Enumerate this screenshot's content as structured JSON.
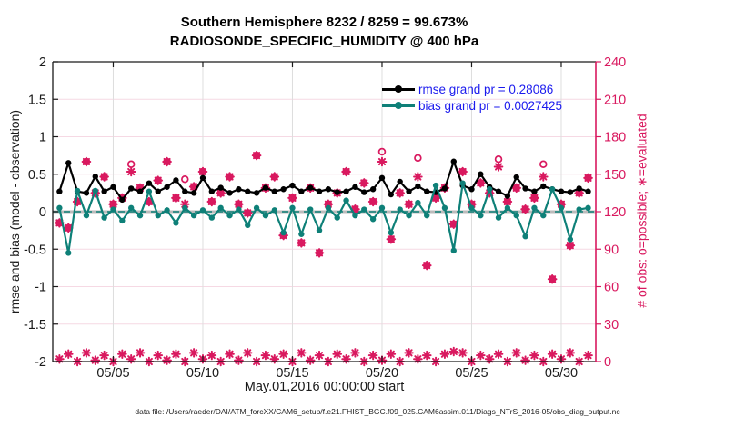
{
  "figure": {
    "title_line1": "Southern Hemisphere 8232 / 8259 = 99.673%",
    "title_line2": "RADIOSONDE_SPECIFIC_HUMIDITY @ 400 hPa",
    "footer": "data file: /Users/raeder/DAI/ATM_forcXX/CAM6_setup/f.e21.FHIST_BGC.f09_025.CAM6assim.011/Diags_NTrS_2016-05/obs_diag_output.nc"
  },
  "legend": [
    {
      "label": "rmse grand pr = 0.28086",
      "color": "#000000"
    },
    {
      "label": "bias grand pr = 0.0027425",
      "color": "#0E8078"
    }
  ],
  "colors": {
    "rmse": "#000000",
    "bias": "#0E8078",
    "obs_counts": "#D9195F",
    "legend_text": "#1A1AEE",
    "axis_dark": "#1A1A1A",
    "grid_horizontal": "#F6D9E4",
    "grid_vertical": "#DEDEDE",
    "zero_line": "#BBBBBB"
  },
  "chart_data": {
    "type": "line",
    "title": "Southern Hemisphere 8232 / 8259 = 99.673% — RADIOSONDE_SPECIFIC_HUMIDITY @ 400 hPa",
    "xlabel": "May.01,2016 00:00:00 start",
    "ylabel_left": "rmse and bias (model - observation)",
    "ylabel_right": "# of obs: o=possible; ∗=evaluated",
    "ylim_left": [
      -2,
      2
    ],
    "yticks_left": {
      "values": [
        2,
        1.5,
        1,
        0.5,
        0,
        -0.5,
        -1,
        -1.5,
        -2
      ],
      "labels": [
        "2",
        "1.5",
        "1",
        "0.5",
        "0",
        "-0.5",
        "-1",
        "-1.5",
        "-2"
      ]
    },
    "ylim_right": [
      0,
      240
    ],
    "yticks_right": {
      "values": [
        240,
        210,
        180,
        150,
        120,
        90,
        60,
        30,
        0
      ],
      "labels": [
        "240",
        "210",
        "180",
        "150",
        "120",
        "90",
        "60",
        "30",
        "0"
      ]
    },
    "xlim_days": [
      1.625,
      31.93
    ],
    "xticks": {
      "values": [
        5,
        10,
        15,
        20,
        25,
        30
      ],
      "labels": [
        "05/05",
        "05/10",
        "05/15",
        "05/20",
        "05/25",
        "05/30"
      ]
    },
    "grid": true,
    "legend_position": "top-right-inside",
    "x_days": [
      2.0,
      2.5,
      3.0,
      3.5,
      4.0,
      4.5,
      5.0,
      5.5,
      6.0,
      6.5,
      7.0,
      7.5,
      8.0,
      8.5,
      9.0,
      9.5,
      10.0,
      10.5,
      11.0,
      11.5,
      12.0,
      12.5,
      13.0,
      13.5,
      14.0,
      14.5,
      15.0,
      15.5,
      16.0,
      16.5,
      17.0,
      17.5,
      18.0,
      18.5,
      19.0,
      19.5,
      20.0,
      20.5,
      21.0,
      21.5,
      22.0,
      22.5,
      23.0,
      23.5,
      24.0,
      24.5,
      25.0,
      25.5,
      26.0,
      26.5,
      27.0,
      27.5,
      28.0,
      28.5,
      29.0,
      29.5,
      30.0,
      30.5,
      31.0,
      31.5
    ],
    "series": [
      {
        "name": "rmse",
        "axis": "left",
        "color": "#000000",
        "values": [
          0.27,
          0.65,
          0.27,
          0.25,
          0.47,
          0.27,
          0.33,
          0.16,
          0.31,
          0.27,
          0.38,
          0.27,
          0.33,
          0.42,
          0.27,
          0.25,
          0.45,
          0.27,
          0.32,
          0.25,
          0.3,
          0.27,
          0.25,
          0.32,
          0.27,
          0.3,
          0.35,
          0.27,
          0.32,
          0.27,
          0.3,
          0.26,
          0.27,
          0.33,
          0.26,
          0.3,
          0.45,
          0.23,
          0.4,
          0.27,
          0.34,
          0.27,
          0.26,
          0.31,
          0.67,
          0.35,
          0.3,
          0.5,
          0.33,
          0.27,
          0.21,
          0.46,
          0.31,
          0.27,
          0.34,
          0.3,
          0.27,
          0.26,
          0.31,
          0.27
        ]
      },
      {
        "name": "bias",
        "axis": "left",
        "color": "#0E8078",
        "values": [
          0.05,
          -0.55,
          0.28,
          -0.05,
          0.28,
          -0.08,
          0.03,
          -0.12,
          0.05,
          -0.05,
          0.27,
          -0.05,
          0.02,
          -0.15,
          0.05,
          -0.05,
          0.02,
          -0.08,
          0.05,
          -0.05,
          0.03,
          -0.18,
          0.05,
          -0.05,
          0.02,
          -0.28,
          0.05,
          -0.3,
          0.03,
          -0.25,
          0.05,
          -0.08,
          0.15,
          -0.05,
          0.03,
          -0.1,
          0.05,
          -0.28,
          0.03,
          -0.05,
          0.12,
          -0.05,
          0.35,
          0.05,
          -0.52,
          0.38,
          0.05,
          -0.05,
          0.3,
          -0.08,
          0.05,
          -0.05,
          -0.33,
          0.05,
          -0.05,
          0.3,
          0.05,
          -0.37,
          0.03,
          0.05
        ]
      }
    ],
    "counts": {
      "axis": "right",
      "color": "#D9195F",
      "possible_marker": "o",
      "evaluated_marker": "∗",
      "possible": [
        111,
        107,
        128,
        160,
        135,
        148,
        126,
        131,
        158,
        139,
        128,
        145,
        160,
        131,
        146,
        140,
        152,
        128,
        135,
        148,
        126,
        119,
        165,
        139,
        148,
        101,
        131,
        95,
        139,
        87,
        126,
        135,
        152,
        122,
        143,
        128,
        168,
        98,
        135,
        126,
        163,
        77,
        131,
        139,
        110,
        152,
        126,
        143,
        135,
        162,
        128,
        139,
        122,
        131,
        158,
        66,
        126,
        93,
        135,
        147
      ],
      "evaluated": [
        111,
        107,
        128,
        160,
        135,
        148,
        126,
        131,
        152,
        139,
        128,
        145,
        160,
        131,
        126,
        140,
        152,
        128,
        135,
        148,
        126,
        119,
        165,
        139,
        148,
        101,
        131,
        95,
        139,
        87,
        126,
        135,
        152,
        122,
        143,
        128,
        160,
        98,
        135,
        126,
        148,
        77,
        131,
        139,
        110,
        152,
        126,
        143,
        135,
        156,
        128,
        139,
        122,
        131,
        148,
        66,
        126,
        93,
        135,
        147
      ],
      "near_zero_markers": [
        2,
        6,
        0,
        7,
        1,
        5,
        0,
        6,
        2,
        7,
        0,
        5,
        1,
        6,
        0,
        7,
        2,
        5,
        0,
        6,
        1,
        7,
        0,
        5,
        2,
        6,
        0,
        7,
        1,
        5,
        0,
        6,
        2,
        7,
        0,
        5,
        1,
        6,
        0,
        7,
        2,
        5,
        0,
        6,
        8,
        7,
        0,
        5,
        2,
        6,
        0,
        7,
        1,
        5,
        0,
        6,
        2,
        7,
        0,
        5
      ]
    },
    "reference_lines": [
      {
        "value": 0,
        "axis": "left",
        "style": "solid-gray-thick"
      },
      {
        "value": 0,
        "axis": "left",
        "style": "dashed-teal"
      }
    ]
  }
}
